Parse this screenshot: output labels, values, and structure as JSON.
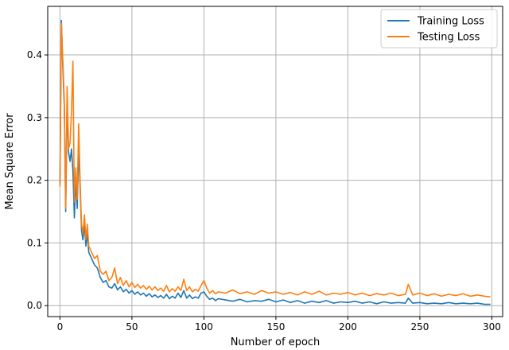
{
  "chart_data": {
    "type": "line",
    "title": "",
    "xlabel": "Number of epoch",
    "ylabel": "Mean Square Error",
    "xlim": [
      -8.5,
      307.5
    ],
    "ylim": [
      -0.0175,
      0.4775
    ],
    "xticks": [
      0,
      50,
      100,
      150,
      200,
      250,
      300
    ],
    "yticks": [
      0.0,
      0.1,
      0.2,
      0.3,
      0.4
    ],
    "ytick_labels": [
      "0.0",
      "0.1",
      "0.2",
      "0.3",
      "0.4"
    ],
    "grid": true,
    "legend": "top-right",
    "series": [
      {
        "name": "Training Loss",
        "color": "#1f77b4",
        "points": [
          [
            0,
            0.195
          ],
          [
            1,
            0.455
          ],
          [
            2,
            0.38
          ],
          [
            3,
            0.32
          ],
          [
            4,
            0.15
          ],
          [
            5,
            0.32
          ],
          [
            6,
            0.245
          ],
          [
            7,
            0.23
          ],
          [
            8,
            0.25
          ],
          [
            9,
            0.215
          ],
          [
            10,
            0.14
          ],
          [
            11,
            0.2
          ],
          [
            12,
            0.155
          ],
          [
            13,
            0.25
          ],
          [
            14,
            0.19
          ],
          [
            15,
            0.12
          ],
          [
            16,
            0.105
          ],
          [
            17,
            0.13
          ],
          [
            18,
            0.095
          ],
          [
            19,
            0.115
          ],
          [
            20,
            0.085
          ],
          [
            22,
            0.075
          ],
          [
            24,
            0.065
          ],
          [
            26,
            0.06
          ],
          [
            28,
            0.045
          ],
          [
            30,
            0.037
          ],
          [
            32,
            0.04
          ],
          [
            34,
            0.03
          ],
          [
            36,
            0.028
          ],
          [
            38,
            0.035
          ],
          [
            40,
            0.025
          ],
          [
            42,
            0.03
          ],
          [
            44,
            0.022
          ],
          [
            46,
            0.026
          ],
          [
            48,
            0.02
          ],
          [
            50,
            0.024
          ],
          [
            52,
            0.018
          ],
          [
            54,
            0.022
          ],
          [
            56,
            0.017
          ],
          [
            58,
            0.02
          ],
          [
            60,
            0.015
          ],
          [
            62,
            0.019
          ],
          [
            64,
            0.014
          ],
          [
            66,
            0.017
          ],
          [
            68,
            0.013
          ],
          [
            70,
            0.016
          ],
          [
            72,
            0.012
          ],
          [
            74,
            0.018
          ],
          [
            76,
            0.011
          ],
          [
            78,
            0.015
          ],
          [
            80,
            0.012
          ],
          [
            82,
            0.02
          ],
          [
            84,
            0.013
          ],
          [
            86,
            0.024
          ],
          [
            88,
            0.012
          ],
          [
            90,
            0.017
          ],
          [
            92,
            0.011
          ],
          [
            94,
            0.014
          ],
          [
            96,
            0.012
          ],
          [
            98,
            0.02
          ],
          [
            100,
            0.022
          ],
          [
            102,
            0.015
          ],
          [
            104,
            0.01
          ],
          [
            106,
            0.012
          ],
          [
            108,
            0.008
          ],
          [
            110,
            0.011
          ],
          [
            115,
            0.009
          ],
          [
            120,
            0.007
          ],
          [
            125,
            0.01
          ],
          [
            130,
            0.006
          ],
          [
            135,
            0.008
          ],
          [
            140,
            0.007
          ],
          [
            145,
            0.01
          ],
          [
            150,
            0.006
          ],
          [
            155,
            0.009
          ],
          [
            160,
            0.005
          ],
          [
            165,
            0.008
          ],
          [
            170,
            0.004
          ],
          [
            175,
            0.007
          ],
          [
            180,
            0.005
          ],
          [
            185,
            0.008
          ],
          [
            190,
            0.004
          ],
          [
            195,
            0.006
          ],
          [
            200,
            0.005
          ],
          [
            205,
            0.007
          ],
          [
            210,
            0.004
          ],
          [
            215,
            0.006
          ],
          [
            220,
            0.003
          ],
          [
            225,
            0.006
          ],
          [
            230,
            0.004
          ],
          [
            235,
            0.005
          ],
          [
            240,
            0.004
          ],
          [
            242,
            0.012
          ],
          [
            245,
            0.004
          ],
          [
            250,
            0.005
          ],
          [
            255,
            0.003
          ],
          [
            260,
            0.004
          ],
          [
            265,
            0.003
          ],
          [
            270,
            0.005
          ],
          [
            275,
            0.003
          ],
          [
            280,
            0.004
          ],
          [
            285,
            0.003
          ],
          [
            290,
            0.004
          ],
          [
            295,
            0.002
          ],
          [
            299,
            0.002
          ]
        ]
      },
      {
        "name": "Testing Loss",
        "color": "#ff7f0e",
        "points": [
          [
            0,
            0.19
          ],
          [
            1,
            0.45
          ],
          [
            2,
            0.39
          ],
          [
            3,
            0.33
          ],
          [
            4,
            0.155
          ],
          [
            5,
            0.35
          ],
          [
            6,
            0.25
          ],
          [
            7,
            0.26
          ],
          [
            8,
            0.31
          ],
          [
            9,
            0.39
          ],
          [
            10,
            0.165
          ],
          [
            11,
            0.22
          ],
          [
            12,
            0.17
          ],
          [
            13,
            0.29
          ],
          [
            14,
            0.2
          ],
          [
            15,
            0.13
          ],
          [
            16,
            0.115
          ],
          [
            17,
            0.145
          ],
          [
            18,
            0.105
          ],
          [
            19,
            0.13
          ],
          [
            20,
            0.095
          ],
          [
            22,
            0.085
          ],
          [
            24,
            0.075
          ],
          [
            26,
            0.08
          ],
          [
            28,
            0.055
          ],
          [
            30,
            0.05
          ],
          [
            32,
            0.055
          ],
          [
            34,
            0.04
          ],
          [
            36,
            0.045
          ],
          [
            38,
            0.06
          ],
          [
            40,
            0.035
          ],
          [
            42,
            0.045
          ],
          [
            44,
            0.032
          ],
          [
            46,
            0.04
          ],
          [
            48,
            0.03
          ],
          [
            50,
            0.037
          ],
          [
            52,
            0.029
          ],
          [
            54,
            0.034
          ],
          [
            56,
            0.028
          ],
          [
            58,
            0.032
          ],
          [
            60,
            0.026
          ],
          [
            62,
            0.031
          ],
          [
            64,
            0.025
          ],
          [
            66,
            0.03
          ],
          [
            68,
            0.024
          ],
          [
            70,
            0.028
          ],
          [
            72,
            0.023
          ],
          [
            74,
            0.032
          ],
          [
            76,
            0.022
          ],
          [
            78,
            0.027
          ],
          [
            80,
            0.023
          ],
          [
            82,
            0.03
          ],
          [
            84,
            0.024
          ],
          [
            86,
            0.042
          ],
          [
            88,
            0.024
          ],
          [
            90,
            0.03
          ],
          [
            92,
            0.022
          ],
          [
            94,
            0.026
          ],
          [
            96,
            0.023
          ],
          [
            98,
            0.032
          ],
          [
            100,
            0.04
          ],
          [
            102,
            0.028
          ],
          [
            104,
            0.02
          ],
          [
            106,
            0.024
          ],
          [
            108,
            0.019
          ],
          [
            110,
            0.022
          ],
          [
            115,
            0.02
          ],
          [
            120,
            0.025
          ],
          [
            125,
            0.019
          ],
          [
            130,
            0.022
          ],
          [
            135,
            0.018
          ],
          [
            140,
            0.024
          ],
          [
            145,
            0.02
          ],
          [
            150,
            0.022
          ],
          [
            155,
            0.018
          ],
          [
            160,
            0.021
          ],
          [
            165,
            0.017
          ],
          [
            170,
            0.022
          ],
          [
            175,
            0.018
          ],
          [
            180,
            0.023
          ],
          [
            185,
            0.017
          ],
          [
            190,
            0.02
          ],
          [
            195,
            0.018
          ],
          [
            200,
            0.021
          ],
          [
            205,
            0.017
          ],
          [
            210,
            0.02
          ],
          [
            215,
            0.016
          ],
          [
            220,
            0.019
          ],
          [
            225,
            0.017
          ],
          [
            230,
            0.02
          ],
          [
            235,
            0.016
          ],
          [
            240,
            0.018
          ],
          [
            242,
            0.034
          ],
          [
            245,
            0.017
          ],
          [
            250,
            0.02
          ],
          [
            255,
            0.016
          ],
          [
            260,
            0.019
          ],
          [
            265,
            0.015
          ],
          [
            270,
            0.018
          ],
          [
            275,
            0.016
          ],
          [
            280,
            0.019
          ],
          [
            285,
            0.015
          ],
          [
            290,
            0.017
          ],
          [
            295,
            0.015
          ],
          [
            299,
            0.014
          ]
        ]
      }
    ]
  }
}
